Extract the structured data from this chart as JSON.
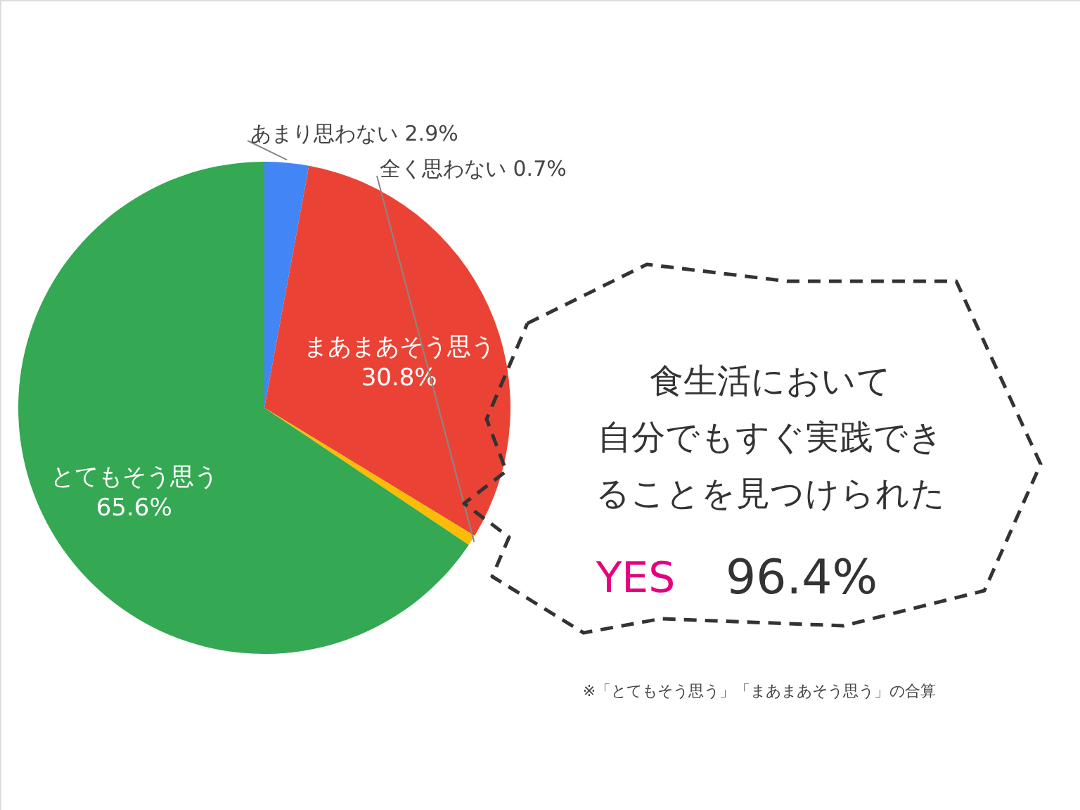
{
  "chart_data": {
    "type": "pie",
    "categories": [
      "あまり思わない",
      "まあまあそう思う",
      "全く思わない",
      "とてもそう思う"
    ],
    "values": [
      2.9,
      30.8,
      0.7,
      65.6
    ],
    "value_labels": [
      "2.9%",
      "30.8%",
      "0.7%",
      "65.6%"
    ],
    "colors": [
      "#4285f4",
      "#ea4335",
      "#fbbc05",
      "#34a853"
    ],
    "annotations": [
      "食生活において",
      "自分でもすぐ実践でき",
      "ることを見つけられた",
      "YES",
      "96.4%",
      "※「とてもそう思う」「まあまあそう思う」の合算"
    ]
  }
}
